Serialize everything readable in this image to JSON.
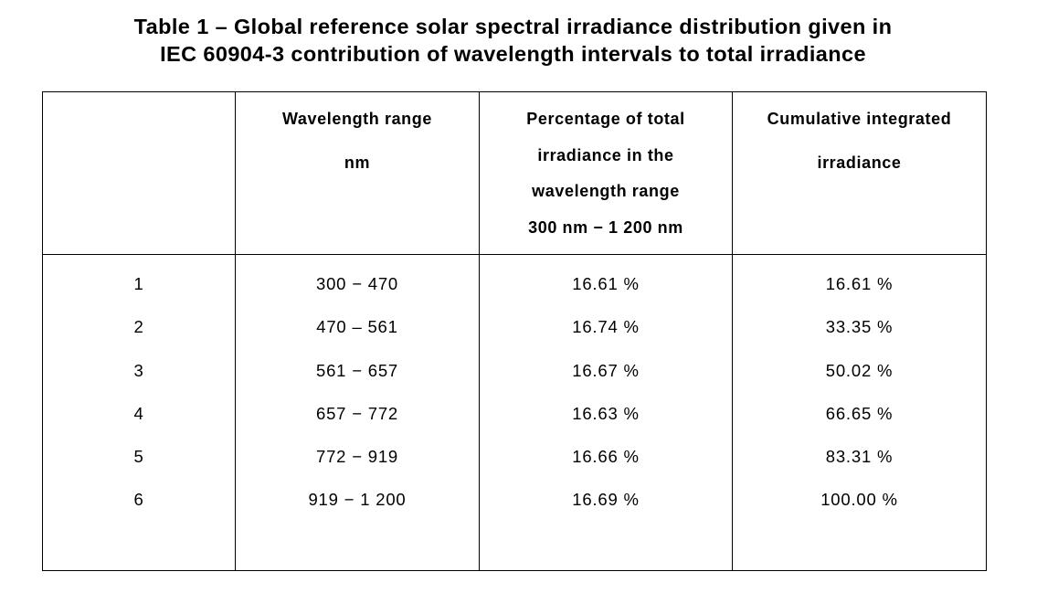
{
  "caption": {
    "line1": "Table 1 – Global reference solar spectral irradiance distribution given in",
    "line2": "IEC 60904-3 contribution of wavelength intervals to total irradiance"
  },
  "table": {
    "headers": [
      {
        "lines": [
          ""
        ]
      },
      {
        "lines": [
          "Wavelength range",
          "nm"
        ]
      },
      {
        "lines": [
          "Percentage of total",
          "irradiance in the",
          "wavelength range",
          "300 nm − 1 200 nm"
        ]
      },
      {
        "lines": [
          "Cumulative integrated",
          "irradiance"
        ]
      }
    ],
    "rows": [
      [
        "1",
        "300 − 470",
        "16.61 %",
        "16.61 %"
      ],
      [
        "2",
        "470 – 561",
        "16.74 %",
        "33.35 %"
      ],
      [
        "3",
        "561 − 657",
        "16.67 %",
        "50.02 %"
      ],
      [
        "4",
        "657 − 772",
        "16.63 %",
        "66.65 %"
      ],
      [
        "5",
        "772 − 919",
        "16.66 %",
        "83.31 %"
      ],
      [
        "6",
        "919 − 1 200",
        "16.69 %",
        "100.00 %"
      ]
    ]
  }
}
